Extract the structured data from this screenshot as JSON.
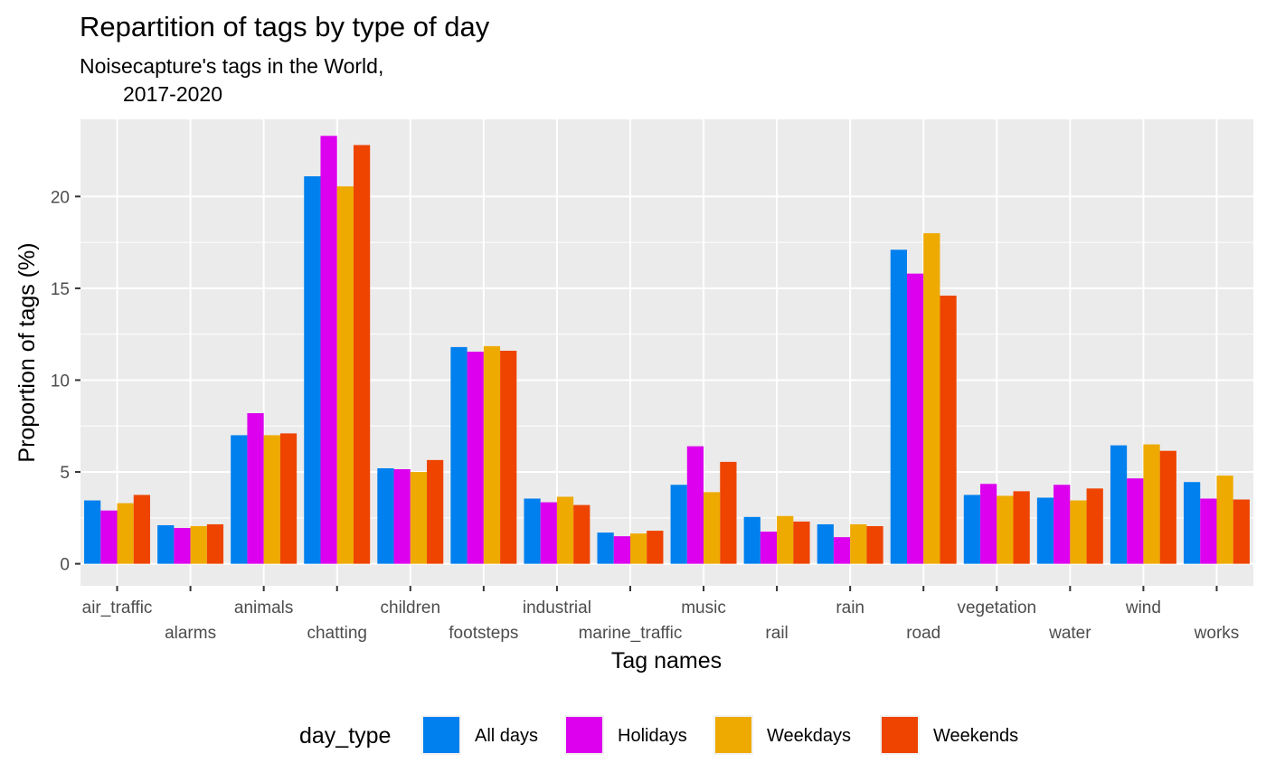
{
  "chart_data": {
    "type": "bar",
    "title": "Repartition of tags by type of day",
    "subtitle_lines": [
      "Noisecapture's tags in the World,",
      "2017-2020"
    ],
    "xlabel": "Tag names",
    "ylabel": "Proportion of tags (%)",
    "ylim": [
      -1.2,
      24.2
    ],
    "y_ticks": [
      0,
      5,
      10,
      15,
      20
    ],
    "grid": true,
    "legend_position": "bottom",
    "legend_title": "day_type",
    "categories": [
      "air_traffic",
      "alarms",
      "animals",
      "chatting",
      "children",
      "footsteps",
      "industrial",
      "marine_traffic",
      "music",
      "rail",
      "rain",
      "road",
      "vegetation",
      "water",
      "wind",
      "works"
    ],
    "series": [
      {
        "name": "All days",
        "color": "#0080EE",
        "values": [
          3.45,
          2.1,
          7.0,
          21.1,
          5.2,
          11.8,
          3.55,
          1.7,
          4.3,
          2.55,
          2.15,
          17.1,
          3.75,
          3.6,
          6.45,
          4.45
        ]
      },
      {
        "name": "Holidays",
        "color": "#DC00EE",
        "values": [
          2.9,
          1.95,
          8.2,
          23.3,
          5.15,
          11.55,
          3.35,
          1.5,
          6.4,
          1.75,
          1.45,
          15.8,
          4.35,
          4.3,
          4.65,
          3.55
        ]
      },
      {
        "name": "Weekdays",
        "color": "#EEAA00",
        "values": [
          3.3,
          2.05,
          7.0,
          20.55,
          5.0,
          11.85,
          3.65,
          1.65,
          3.9,
          2.6,
          2.15,
          18.0,
          3.7,
          3.45,
          6.5,
          4.8
        ]
      },
      {
        "name": "Weekends",
        "color": "#EE4400",
        "values": [
          3.75,
          2.15,
          7.1,
          22.8,
          5.65,
          11.6,
          3.2,
          1.8,
          5.55,
          2.3,
          2.05,
          14.6,
          3.95,
          4.1,
          6.15,
          3.5
        ]
      }
    ]
  }
}
